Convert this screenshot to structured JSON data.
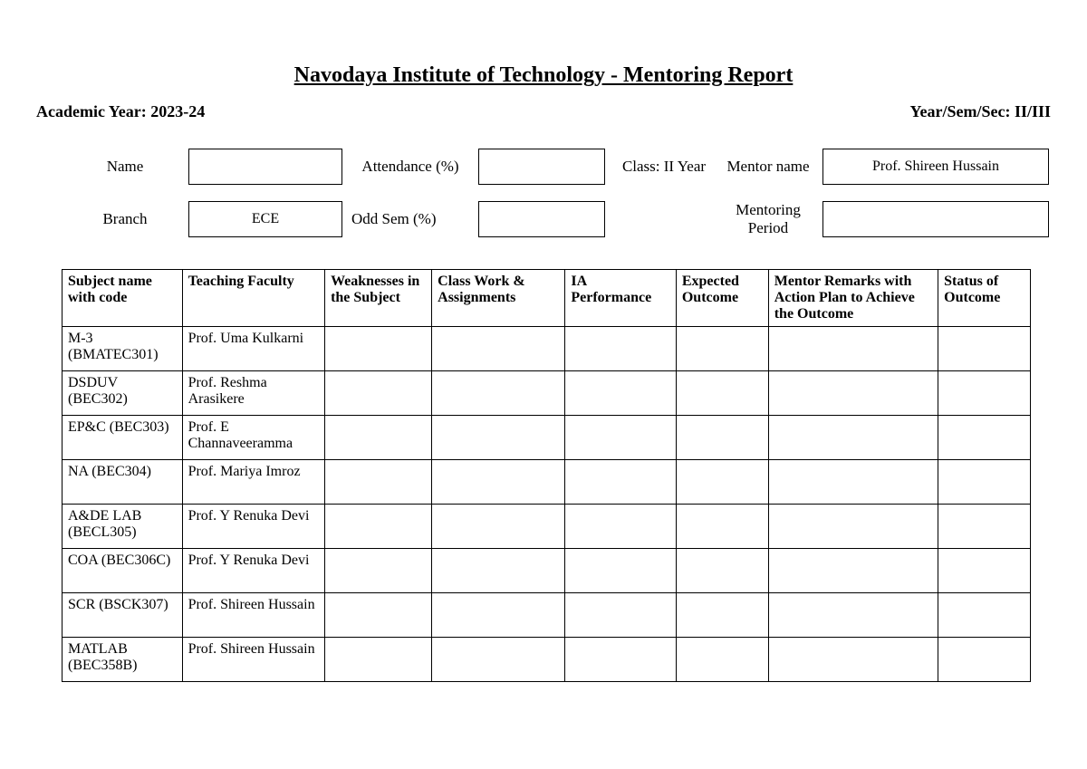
{
  "title": "Navodaya Institute of Technology - Mentoring Report",
  "header": {
    "academic_year_label": "Academic Year: 2023-24",
    "year_sem_sec_label": "Year/Sem/Sec: II/III"
  },
  "info": {
    "name_label": "Name",
    "name_value": "",
    "attendance_label": "Attendance (%)",
    "attendance_value": "",
    "class_label": "Class: II Year",
    "mentor_name_label": "Mentor name",
    "mentor_name_value": "Prof. Shireen Hussain",
    "branch_label": "Branch",
    "branch_value": "ECE",
    "odd_sem_label": "Odd Sem (%)",
    "odd_sem_value": "",
    "mentoring_period_label": "Mentoring Period",
    "mentoring_period_value": ""
  },
  "table": {
    "columns": [
      "Subject name with code",
      "Teaching Faculty",
      "Weaknesses in the Subject",
      "Class Work & Assignments",
      "IA Performance",
      "Expected Outcome",
      "Mentor Remarks with Action Plan to Achieve the Outcome",
      "Status of Outcome"
    ],
    "rows": [
      {
        "subject": "M-3 (BMATEC301)",
        "faculty": "Prof. Uma Kulkarni"
      },
      {
        "subject": "DSDUV (BEC302)",
        "faculty": "Prof. Reshma Arasikere"
      },
      {
        "subject": "EP&C (BEC303)",
        "faculty": "Prof. E Channaveeramma"
      },
      {
        "subject": "NA (BEC304)",
        "faculty": "Prof. Mariya Imroz"
      },
      {
        "subject": "A&DE LAB (BECL305)",
        "faculty": "Prof. Y Renuka Devi"
      },
      {
        "subject": "COA (BEC306C)",
        "faculty": "Prof. Y Renuka Devi"
      },
      {
        "subject": "SCR (BSCK307)",
        "faculty": "Prof. Shireen Hussain"
      },
      {
        "subject": "MATLAB (BEC358B)",
        "faculty": "Prof. Shireen Hussain"
      }
    ]
  }
}
